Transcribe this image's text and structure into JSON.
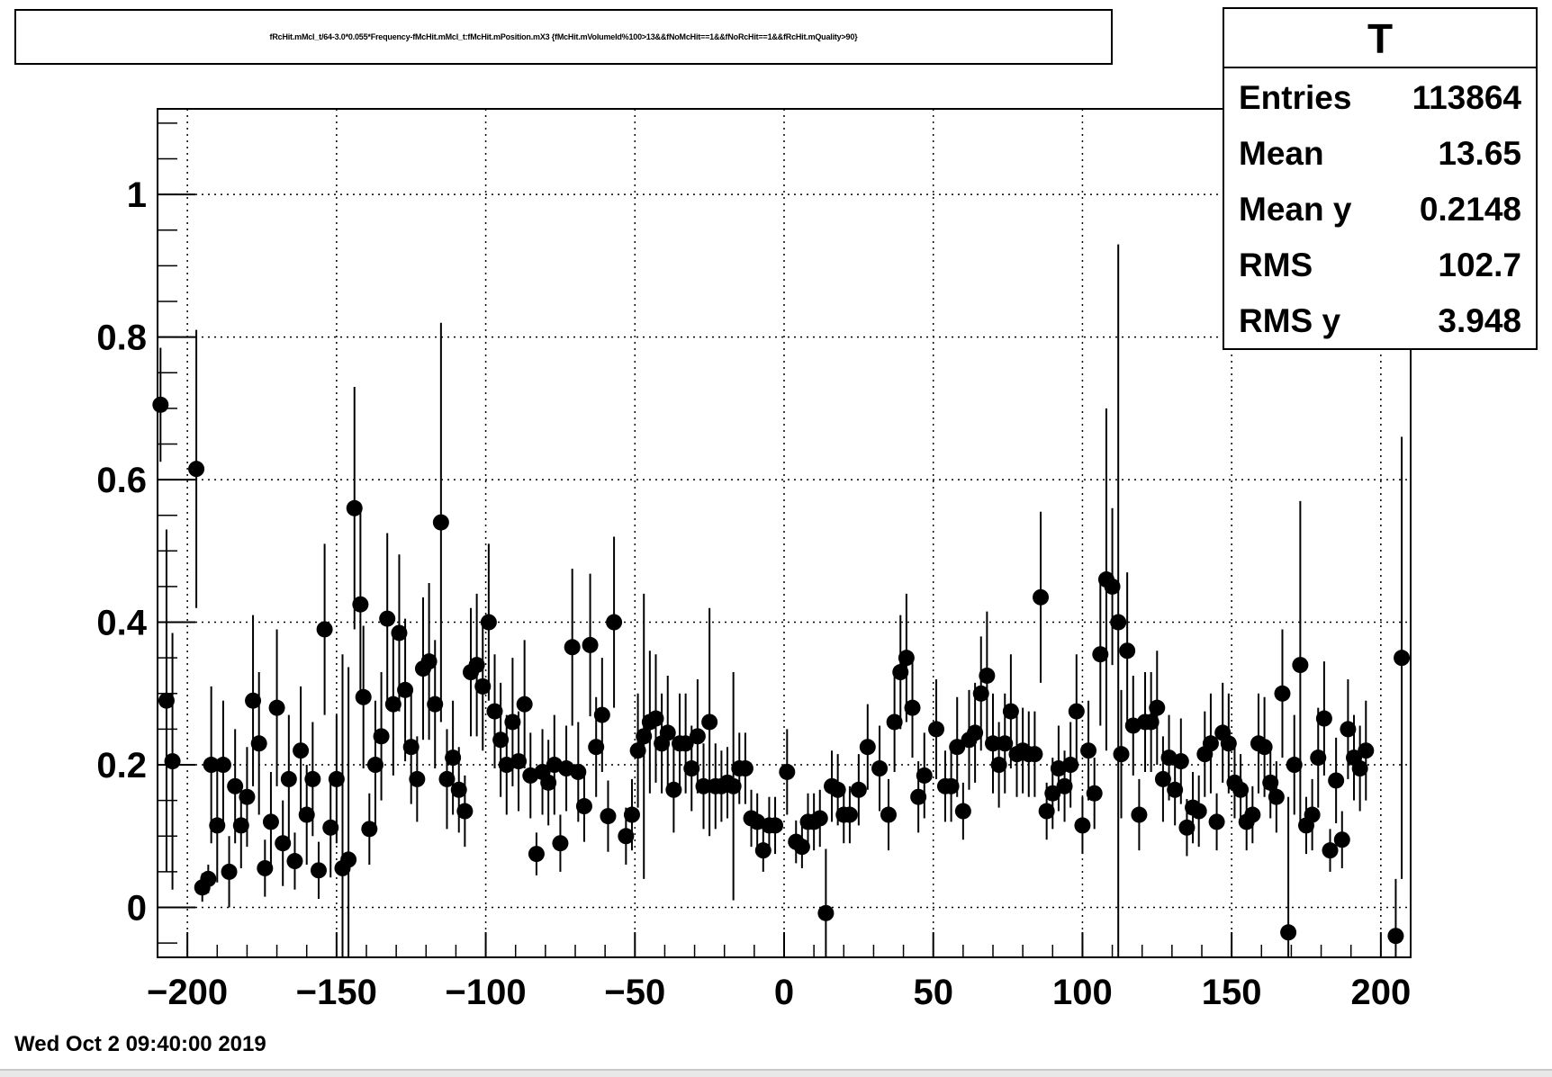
{
  "canvas": {
    "timestamp": "Wed Oct  2 09:40:00 2019"
  },
  "stats_box": {
    "title": "T",
    "rows": [
      {
        "label": "Entries",
        "value": "113864"
      },
      {
        "label": "Mean",
        "value": "13.65"
      },
      {
        "label": "Mean y",
        "value": "0.2148"
      },
      {
        "label": "RMS",
        "value": "102.7"
      },
      {
        "label": "RMS y",
        "value": "3.948"
      }
    ]
  },
  "colors": {
    "marker": "#000000",
    "grid": "#000000",
    "background": "#ffffff"
  },
  "chart_data": {
    "type": "scatter",
    "style": "profile-with-error-bars",
    "title": "fRcHit.mMcl_t/64-3.0*0.055*Frequency-fMcHit.mMcl_t:fMcHit.mPosition.mX3 {fMcHit.mVolumeId%100>13&&fNoMcHit==1&&fNoRcHit==1&&fRcHit.mQuality>90}",
    "xlabel": "",
    "ylabel": "",
    "xlim": [
      -210,
      210
    ],
    "ylim": [
      -0.07,
      1.12
    ],
    "grid": true,
    "legend": "none",
    "x_ticks": [
      -200,
      -150,
      -100,
      -50,
      0,
      50,
      100,
      150,
      200
    ],
    "x_tick_labels": [
      "−200",
      "−150",
      "−100",
      "−50",
      "0",
      "50",
      "100",
      "150",
      "200"
    ],
    "y_ticks": [
      0,
      0.2,
      0.4,
      0.6,
      0.8,
      1
    ],
    "y_tick_labels": [
      "0",
      "0.2",
      "0.4",
      "0.6",
      "0.8",
      "1"
    ],
    "points": [
      [
        -209,
        0.705,
        0.08
      ],
      [
        -207,
        0.29,
        0.24
      ],
      [
        -205,
        0.205,
        0.18
      ],
      [
        -197,
        0.615,
        0.195
      ],
      [
        -195,
        0.028,
        0.02
      ],
      [
        -193,
        0.04,
        0.02
      ],
      [
        -192,
        0.2,
        0.11
      ],
      [
        -190,
        0.115,
        0.08
      ],
      [
        -188,
        0.2,
        0.09
      ],
      [
        -186,
        0.05,
        0.05
      ],
      [
        -184,
        0.17,
        0.08
      ],
      [
        -182,
        0.115,
        0.06
      ],
      [
        -180,
        0.155,
        0.07
      ],
      [
        -178,
        0.29,
        0.12
      ],
      [
        -176,
        0.23,
        0.1
      ],
      [
        -174,
        0.055,
        0.04
      ],
      [
        -172,
        0.12,
        0.07
      ],
      [
        -170,
        0.28,
        0.11
      ],
      [
        -168,
        0.09,
        0.06
      ],
      [
        -166,
        0.18,
        0.09
      ],
      [
        -164,
        0.065,
        0.04
      ],
      [
        -162,
        0.22,
        0.09
      ],
      [
        -160,
        0.13,
        0.07
      ],
      [
        -158,
        0.18,
        0.08
      ],
      [
        -156,
        0.052,
        0.04
      ],
      [
        -154,
        0.39,
        0.12
      ],
      [
        -152,
        0.112,
        0.07
      ],
      [
        -150,
        0.18,
        0.09
      ],
      [
        -148,
        0.055,
        0.3
      ],
      [
        -146,
        0.067,
        0.27
      ],
      [
        -144,
        0.56,
        0.17
      ],
      [
        -142,
        0.425,
        0.13
      ],
      [
        -141,
        0.295,
        0.1
      ],
      [
        -139,
        0.11,
        0.05
      ],
      [
        -137,
        0.2,
        0.09
      ],
      [
        -135,
        0.24,
        0.09
      ],
      [
        -133,
        0.405,
        0.12
      ],
      [
        -131,
        0.285,
        0.1
      ],
      [
        -129,
        0.385,
        0.11
      ],
      [
        -127,
        0.305,
        0.1
      ],
      [
        -125,
        0.225,
        0.08
      ],
      [
        -123,
        0.18,
        0.06
      ],
      [
        -121,
        0.335,
        0.1
      ],
      [
        -119,
        0.345,
        0.11
      ],
      [
        -117,
        0.285,
        0.09
      ],
      [
        -115,
        0.54,
        0.28
      ],
      [
        -113,
        0.18,
        0.07
      ],
      [
        -111,
        0.21,
        0.08
      ],
      [
        -109,
        0.165,
        0.06
      ],
      [
        -107,
        0.135,
        0.05
      ],
      [
        -105,
        0.33,
        0.09
      ],
      [
        -103,
        0.34,
        0.1
      ],
      [
        -101,
        0.31,
        0.09
      ],
      [
        -99,
        0.4,
        0.11
      ],
      [
        -97,
        0.275,
        0.08
      ],
      [
        -95,
        0.235,
        0.08
      ],
      [
        -93,
        0.2,
        0.07
      ],
      [
        -91,
        0.26,
        0.09
      ],
      [
        -89,
        0.205,
        0.07
      ],
      [
        -87,
        0.285,
        0.09
      ],
      [
        -85,
        0.185,
        0.06
      ],
      [
        -83,
        0.075,
        0.03
      ],
      [
        -81,
        0.19,
        0.06
      ],
      [
        -79,
        0.175,
        0.06
      ],
      [
        -77,
        0.2,
        0.07
      ],
      [
        -75,
        0.09,
        0.04
      ],
      [
        -73,
        0.195,
        0.06
      ],
      [
        -71,
        0.365,
        0.11
      ],
      [
        -69,
        0.19,
        0.07
      ],
      [
        -67,
        0.142,
        0.05
      ],
      [
        -65,
        0.368,
        0.1
      ],
      [
        -63,
        0.225,
        0.07
      ],
      [
        -61,
        0.27,
        0.08
      ],
      [
        -59,
        0.128,
        0.05
      ],
      [
        -57,
        0.4,
        0.12
      ],
      [
        -53,
        0.1,
        0.04
      ],
      [
        -51,
        0.13,
        0.05
      ],
      [
        -49,
        0.22,
        0.08
      ],
      [
        -47,
        0.24,
        0.2
      ],
      [
        -45,
        0.26,
        0.1
      ],
      [
        -43,
        0.265,
        0.09
      ],
      [
        -41,
        0.23,
        0.07
      ],
      [
        -39,
        0.245,
        0.08
      ],
      [
        -37,
        0.165,
        0.06
      ],
      [
        -35,
        0.23,
        0.07
      ],
      [
        -33,
        0.23,
        0.07
      ],
      [
        -31,
        0.195,
        0.06
      ],
      [
        -29,
        0.24,
        0.08
      ],
      [
        -27,
        0.17,
        0.06
      ],
      [
        -25,
        0.26,
        0.16
      ],
      [
        -23,
        0.17,
        0.06
      ],
      [
        -21,
        0.17,
        0.05
      ],
      [
        -19,
        0.175,
        0.05
      ],
      [
        -17,
        0.17,
        0.16
      ],
      [
        -15,
        0.195,
        0.05
      ],
      [
        -13,
        0.195,
        0.05
      ],
      [
        -11,
        0.125,
        0.04
      ],
      [
        -9,
        0.12,
        0.04
      ],
      [
        -7,
        0.08,
        0.03
      ],
      [
        -5,
        0.115,
        0.04
      ],
      [
        -3,
        0.115,
        0.04
      ],
      [
        1,
        0.19,
        0.06
      ],
      [
        4,
        0.092,
        0.03
      ],
      [
        6,
        0.085,
        0.03
      ],
      [
        8,
        0.12,
        0.04
      ],
      [
        10,
        0.12,
        0.04
      ],
      [
        12,
        0.125,
        0.04
      ],
      [
        14,
        -0.008,
        0.09
      ],
      [
        16,
        0.17,
        0.05
      ],
      [
        18,
        0.165,
        0.05
      ],
      [
        20,
        0.13,
        0.04
      ],
      [
        22,
        0.13,
        0.04
      ],
      [
        25,
        0.165,
        0.05
      ],
      [
        28,
        0.225,
        0.06
      ],
      [
        32,
        0.195,
        0.06
      ],
      [
        35,
        0.13,
        0.05
      ],
      [
        37,
        0.26,
        0.07
      ],
      [
        39,
        0.33,
        0.08
      ],
      [
        41,
        0.35,
        0.09
      ],
      [
        43,
        0.28,
        0.07
      ],
      [
        45,
        0.155,
        0.05
      ],
      [
        47,
        0.185,
        0.06
      ],
      [
        51,
        0.25,
        0.07
      ],
      [
        54,
        0.17,
        0.05
      ],
      [
        56,
        0.17,
        0.05
      ],
      [
        58,
        0.225,
        0.07
      ],
      [
        60,
        0.135,
        0.04
      ],
      [
        62,
        0.235,
        0.07
      ],
      [
        64,
        0.245,
        0.07
      ],
      [
        66,
        0.3,
        0.08
      ],
      [
        68,
        0.325,
        0.09
      ],
      [
        70,
        0.23,
        0.07
      ],
      [
        72,
        0.2,
        0.06
      ],
      [
        74,
        0.23,
        0.07
      ],
      [
        76,
        0.275,
        0.08
      ],
      [
        78,
        0.215,
        0.06
      ],
      [
        80,
        0.22,
        0.06
      ],
      [
        82,
        0.215,
        0.06
      ],
      [
        84,
        0.215,
        0.06
      ],
      [
        86,
        0.435,
        0.12
      ],
      [
        88,
        0.135,
        0.04
      ],
      [
        90,
        0.16,
        0.05
      ],
      [
        92,
        0.195,
        0.06
      ],
      [
        94,
        0.17,
        0.05
      ],
      [
        96,
        0.2,
        0.06
      ],
      [
        98,
        0.275,
        0.08
      ],
      [
        100,
        0.115,
        0.04
      ],
      [
        102,
        0.22,
        0.07
      ],
      [
        104,
        0.16,
        0.05
      ],
      [
        106,
        0.355,
        0.1
      ],
      [
        108,
        0.46,
        0.24
      ],
      [
        110,
        0.45,
        0.11
      ],
      [
        112,
        0.4,
        0.53
      ],
      [
        113,
        0.215,
        0.09
      ],
      [
        115,
        0.36,
        0.11
      ],
      [
        117,
        0.255,
        0.07
      ],
      [
        119,
        0.13,
        0.05
      ],
      [
        121,
        0.26,
        0.07
      ],
      [
        123,
        0.26,
        0.07
      ],
      [
        125,
        0.28,
        0.08
      ],
      [
        127,
        0.18,
        0.06
      ],
      [
        129,
        0.21,
        0.06
      ],
      [
        131,
        0.165,
        0.05
      ],
      [
        133,
        0.205,
        0.06
      ],
      [
        135,
        0.112,
        0.04
      ],
      [
        137,
        0.14,
        0.05
      ],
      [
        139,
        0.135,
        0.05
      ],
      [
        141,
        0.215,
        0.06
      ],
      [
        143,
        0.23,
        0.07
      ],
      [
        145,
        0.12,
        0.04
      ],
      [
        147,
        0.245,
        0.07
      ],
      [
        149,
        0.23,
        0.07
      ],
      [
        151,
        0.175,
        0.05
      ],
      [
        153,
        0.165,
        0.05
      ],
      [
        155,
        0.12,
        0.04
      ],
      [
        157,
        0.13,
        0.04
      ],
      [
        159,
        0.23,
        0.07
      ],
      [
        161,
        0.225,
        0.07
      ],
      [
        163,
        0.175,
        0.05
      ],
      [
        165,
        0.155,
        0.05
      ],
      [
        167,
        0.3,
        0.09
      ],
      [
        169,
        -0.035,
        0.19
      ],
      [
        171,
        0.2,
        0.07
      ],
      [
        173,
        0.34,
        0.23
      ],
      [
        175,
        0.115,
        0.04
      ],
      [
        177,
        0.13,
        0.05
      ],
      [
        179,
        0.21,
        0.07
      ],
      [
        181,
        0.265,
        0.08
      ],
      [
        183,
        0.08,
        0.03
      ],
      [
        185,
        0.178,
        0.06
      ],
      [
        187,
        0.095,
        0.04
      ],
      [
        189,
        0.25,
        0.07
      ],
      [
        191,
        0.21,
        0.06
      ],
      [
        193,
        0.195,
        0.06
      ],
      [
        195,
        0.22,
        0.07
      ],
      [
        205,
        -0.04,
        0.08
      ],
      [
        207,
        0.35,
        0.31
      ]
    ]
  }
}
